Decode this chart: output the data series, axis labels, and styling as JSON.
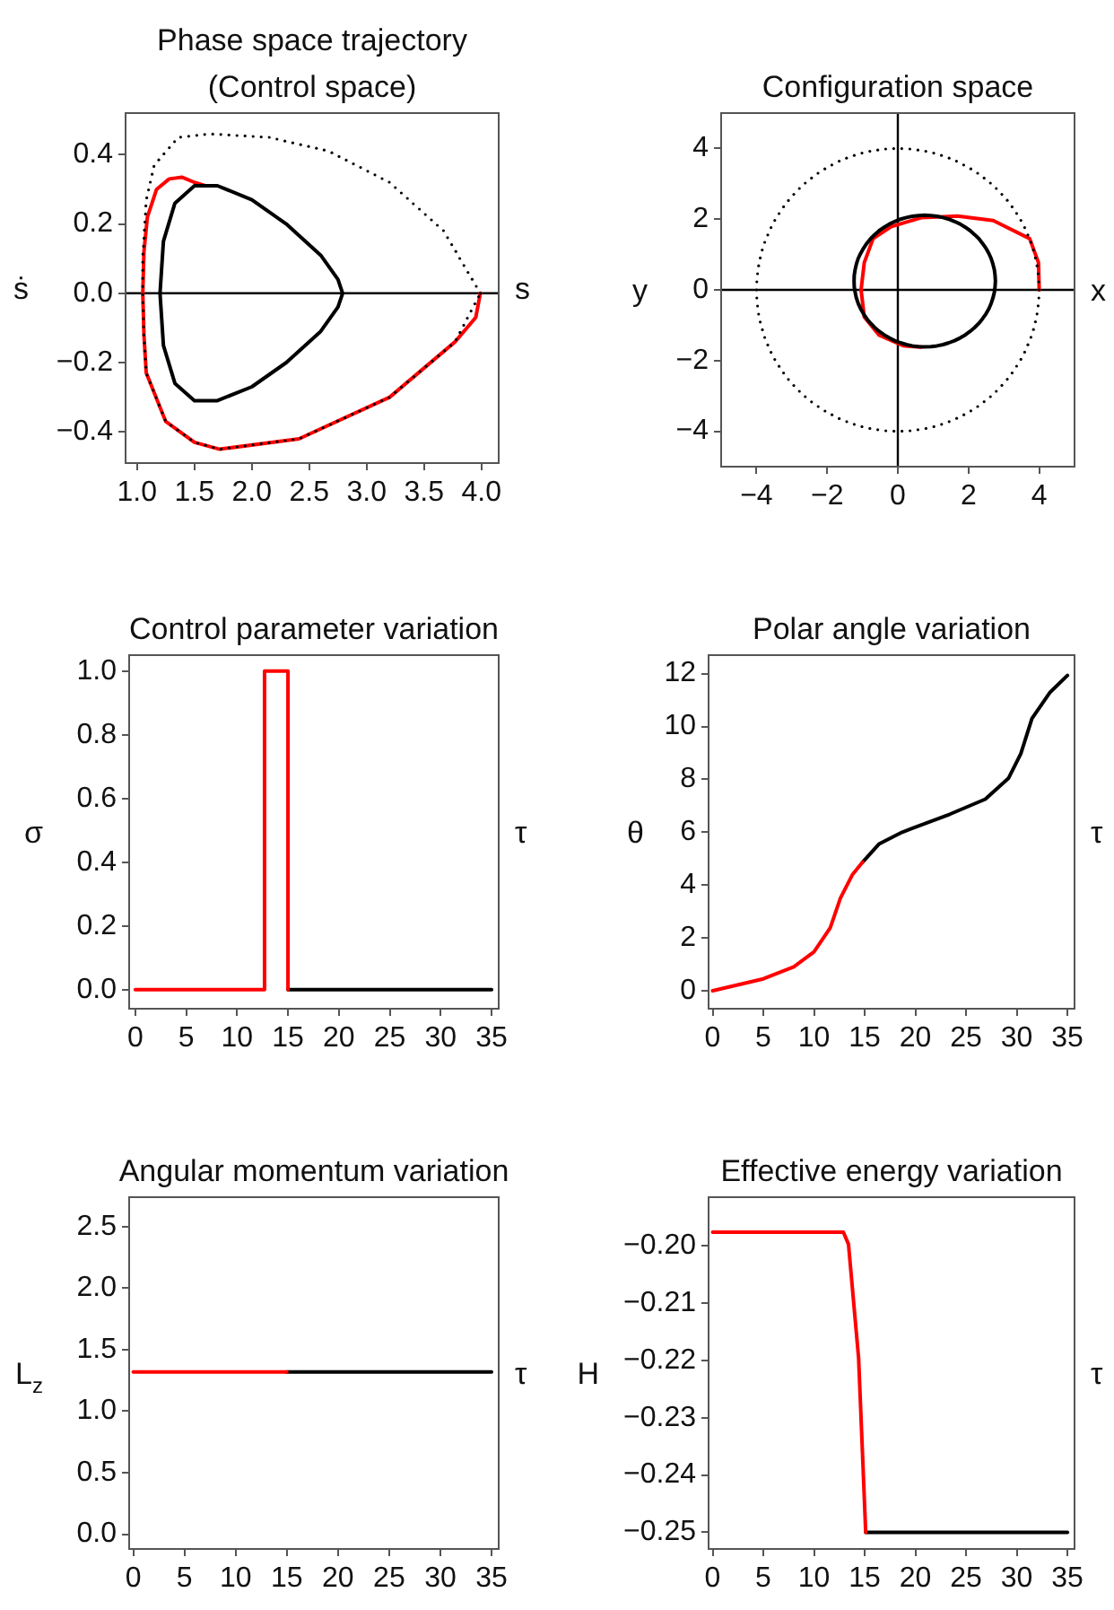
{
  "chart_data": [
    {
      "type": "line",
      "title": "Phase space trajectory",
      "subtitle": "(Control space)",
      "xlabel": "s",
      "ylabel": "ṡ",
      "xlim": [
        0.9,
        4.15
      ],
      "ylim": [
        -0.49,
        0.52
      ],
      "xticks": [
        {
          "value": 1,
          "label": "1.0"
        },
        1.5,
        {
          "value": 2,
          "label": "2.0"
        },
        2.5,
        {
          "value": 3,
          "label": "3.0"
        },
        3.5,
        {
          "value": 4,
          "label": "4.0"
        }
      ],
      "yticks": [
        {
          "value": -0.4,
          "label": "−0.4"
        },
        {
          "value": -0.2,
          "label": "−0.2"
        },
        {
          "value": 0,
          "label": "0.0"
        },
        0.2,
        0.4
      ],
      "ref_lines": [
        {
          "axis": "y",
          "value": 0,
          "color": "#000000"
        }
      ],
      "series": [
        {
          "color": "#ff0000",
          "x": [
            3.99,
            3.95,
            3.77,
            3.2,
            2.41,
            1.72,
            1.5,
            1.25,
            1.08,
            1.06,
            1.05,
            1.06,
            1.09,
            1.17,
            1.28,
            1.39,
            1.5,
            1.6
          ],
          "values": [
            0,
            -0.07,
            -0.14,
            -0.3,
            -0.42,
            -0.45,
            -0.43,
            -0.37,
            -0.23,
            -0.12,
            0,
            0.12,
            0.22,
            0.3,
            0.33,
            0.335,
            0.32,
            0.31
          ]
        }
      ]
    },
    {
      "type": "line",
      "title": "Configuration space",
      "xlabel": "x",
      "ylabel": "y",
      "xlim": [
        -5,
        5
      ],
      "ylim": [
        -5,
        5
      ],
      "xticks": [
        {
          "value": -4,
          "label": "−4"
        },
        {
          "value": -2,
          "label": "−2"
        },
        0,
        2,
        4
      ],
      "yticks": [
        {
          "value": -4,
          "label": "−4"
        },
        {
          "value": -2,
          "label": "−2"
        },
        0,
        2,
        4
      ],
      "ref_lines": [
        {
          "axis": "y",
          "value": 0,
          "color": "#000000"
        },
        {
          "axis": "x",
          "value": 0,
          "color": "#000000"
        }
      ],
      "series": [
        {
          "color": "#ff0000",
          "x": [
            4,
            3.98,
            3.73,
            2.7,
            1.69,
            0.66,
            -0.19,
            -0.7,
            -0.95,
            -1.04,
            -0.95,
            -0.53,
            0.15,
            0.66
          ],
          "values": [
            0,
            0.77,
            1.45,
            1.96,
            2.09,
            2.04,
            1.79,
            1.45,
            0.77,
            0,
            -0.77,
            -1.28,
            -1.58,
            -1.62
          ]
        }
      ]
    },
    {
      "type": "line",
      "title": "Control parameter variation",
      "xlabel": "τ",
      "ylabel": "σ",
      "xlim": [
        -0.6,
        35.7
      ],
      "ylim": [
        -0.06,
        1.05
      ],
      "xticks": [
        0,
        5,
        10,
        15,
        20,
        25,
        30,
        35
      ],
      "yticks": [
        {
          "value": 0,
          "label": "0.0"
        },
        0.2,
        0.4,
        0.6,
        0.8,
        {
          "value": 1,
          "label": "1.0"
        }
      ],
      "series": [
        {
          "color": "#ff0000",
          "x": [
            0,
            12.7,
            12.7,
            15,
            15
          ],
          "values": [
            0,
            0,
            1,
            1,
            0
          ]
        },
        {
          "color": "#000000",
          "x": [
            15,
            35
          ],
          "values": [
            0,
            0
          ]
        }
      ]
    },
    {
      "type": "line",
      "title": "Polar angle variation",
      "xlabel": "τ",
      "ylabel": "θ",
      "xlim": [
        -0.4,
        35.7
      ],
      "ylim": [
        -0.68,
        12.7
      ],
      "xticks": [
        0,
        5,
        10,
        15,
        20,
        25,
        30,
        35
      ],
      "yticks": [
        0,
        2,
        4,
        6,
        8,
        10,
        12
      ],
      "series": [
        {
          "color": "#ff0000",
          "x": [
            0,
            5,
            8,
            10,
            11.6,
            12.6,
            13.8,
            14.8
          ],
          "values": [
            0,
            0.45,
            0.9,
            1.47,
            2.38,
            3.5,
            4.4,
            4.87
          ]
        },
        {
          "color": "#000000",
          "x": [
            14.8,
            16.4,
            18.7,
            23.4,
            26.9,
            29.2,
            30.4,
            31.5,
            33.3,
            35
          ],
          "values": [
            4.87,
            5.55,
            6.0,
            6.68,
            7.25,
            8.05,
            8.97,
            10.3,
            11.3,
            11.93
          ]
        }
      ]
    },
    {
      "type": "line",
      "title": "Angular momentum variation",
      "xlabel": "τ",
      "ylabel": "L$_{z}$",
      "xlim": [
        -0.4,
        35.7
      ],
      "ylim": [
        -0.12,
        2.74
      ],
      "xticks": [
        0,
        5,
        10,
        15,
        20,
        25,
        30,
        35
      ],
      "yticks": [
        {
          "value": 0,
          "label": "0.0"
        },
        0.5,
        {
          "value": 1,
          "label": "1.0"
        },
        1.5,
        {
          "value": 2,
          "label": "2.0"
        },
        2.5
      ],
      "series": [
        {
          "color": "#ff0000",
          "x": [
            0,
            15
          ],
          "values": [
            1.32,
            1.32
          ]
        },
        {
          "color": "#000000",
          "x": [
            15,
            35
          ],
          "values": [
            1.32,
            1.32
          ]
        }
      ]
    },
    {
      "type": "line",
      "title": "Effective energy variation",
      "xlabel": "τ",
      "ylabel": "H",
      "xlim": [
        -0.4,
        35.7
      ],
      "ylim": [
        -0.2529,
        -0.1915
      ],
      "xticks": [
        0,
        5,
        10,
        15,
        20,
        25,
        30,
        35
      ],
      "yticks": [
        {
          "value": -0.25,
          "label": "−0.25"
        },
        {
          "value": -0.24,
          "label": "−0.24"
        },
        {
          "value": -0.23,
          "label": "−0.23"
        },
        {
          "value": -0.22,
          "label": "−0.22"
        },
        {
          "value": -0.21,
          "label": "−0.21"
        },
        {
          "value": -0.2,
          "label": "−0.20"
        }
      ],
      "series": [
        {
          "color": "#ff0000",
          "x": [
            0,
            12.9,
            13.4,
            14.4,
            15.1
          ],
          "values": [
            -0.1976,
            -0.1976,
            -0.1997,
            -0.2196,
            -0.25
          ]
        },
        {
          "color": "#000000",
          "x": [
            15.1,
            35
          ],
          "values": [
            -0.25,
            -0.25
          ]
        }
      ]
    }
  ]
}
